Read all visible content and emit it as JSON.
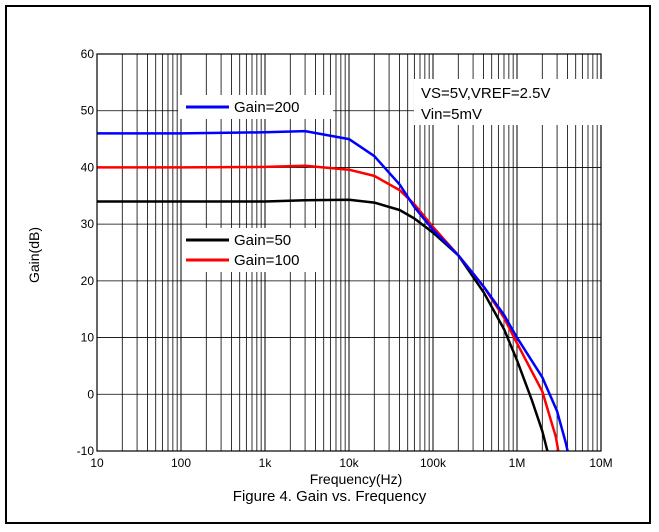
{
  "figure": {
    "caption": "Figure 4. Gain vs. Frequency"
  },
  "chart_data": {
    "type": "line",
    "xlabel": "Frequency(Hz)",
    "ylabel": "Gain(dB)",
    "x_scale": "log",
    "xlim": [
      10,
      10000000
    ],
    "ylim": [
      -10,
      60
    ],
    "grid": true,
    "x_ticks": [
      {
        "value": 10,
        "label": "10"
      },
      {
        "value": 100,
        "label": "100"
      },
      {
        "value": 1000,
        "label": "1k"
      },
      {
        "value": 10000,
        "label": "10k"
      },
      {
        "value": 100000,
        "label": "100k"
      },
      {
        "value": 1000000,
        "label": "1M"
      },
      {
        "value": 10000000,
        "label": "10M"
      }
    ],
    "y_ticks": [
      {
        "value": -10,
        "label": "-10"
      },
      {
        "value": 0,
        "label": "0"
      },
      {
        "value": 10,
        "label": "10"
      },
      {
        "value": 20,
        "label": "20"
      },
      {
        "value": 30,
        "label": "30"
      },
      {
        "value": 40,
        "label": "40"
      },
      {
        "value": 50,
        "label": "50"
      },
      {
        "value": 60,
        "label": "60"
      }
    ],
    "annotations": [
      "VS=5V,VREF=2.5V",
      "Vin=5mV"
    ],
    "series": [
      {
        "name": "Gain=200",
        "color": "#0000ff",
        "x": [
          10,
          100,
          1000,
          3000,
          10000,
          20000,
          40000,
          60000,
          100000,
          200000,
          400000,
          700000,
          1000000,
          2000000,
          3000000,
          3800000,
          4000000
        ],
        "y": [
          46,
          46,
          46.2,
          46.4,
          45,
          42,
          37,
          33,
          29,
          24.5,
          19,
          14,
          10,
          3,
          -3,
          -8.5,
          -10
        ]
      },
      {
        "name": "Gain=100",
        "color": "#ff0000",
        "x": [
          10,
          100,
          1000,
          3000,
          10000,
          20000,
          40000,
          60000,
          100000,
          200000,
          400000,
          700000,
          1000000,
          2000000,
          2900000,
          3100000
        ],
        "y": [
          40,
          40,
          40.1,
          40.3,
          39.6,
          38.5,
          36,
          33.5,
          29.5,
          24.5,
          19,
          13.5,
          9,
          0.5,
          -7.5,
          -10
        ]
      },
      {
        "name": "Gain=50",
        "color": "#000000",
        "x": [
          10,
          100,
          1000,
          3000,
          10000,
          20000,
          40000,
          60000,
          100000,
          200000,
          400000,
          700000,
          1000000,
          1500000,
          2000000,
          2300000
        ],
        "y": [
          34,
          34,
          34,
          34.2,
          34.3,
          33.8,
          32.5,
          31,
          28.5,
          24.5,
          18,
          11.5,
          6,
          -1,
          -6.5,
          -10
        ]
      }
    ]
  }
}
